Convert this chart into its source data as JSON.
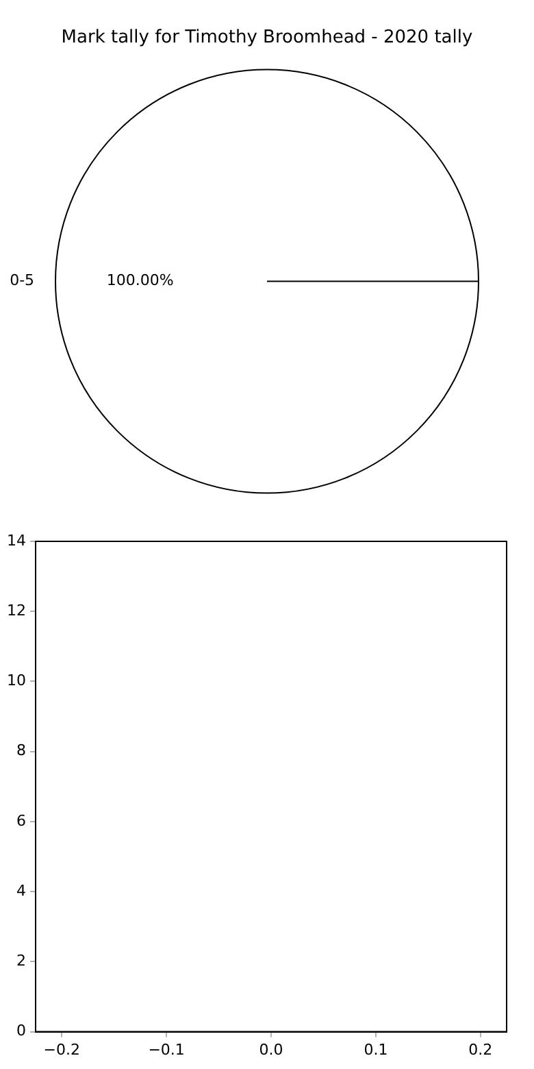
{
  "chart_data": [
    {
      "type": "pie",
      "title": "Mark tally for Timothy Broomhead - 2020 tally",
      "categories": [
        "0-5"
      ],
      "values": [
        100
      ],
      "colors": [
        "#ffffff"
      ],
      "value_labels": [
        "100.00%"
      ]
    },
    {
      "type": "scatter",
      "xlim": [
        -0.225,
        0.225
      ],
      "ylim": [
        0,
        14
      ],
      "xticks": [
        {
          "value": -0.2,
          "label": "−0.2"
        },
        {
          "value": -0.1,
          "label": "−0.1"
        },
        {
          "value": 0,
          "label": "0.0"
        },
        {
          "value": 0.1,
          "label": "0.1"
        },
        {
          "value": 0.2,
          "label": "0.2"
        }
      ],
      "yticks": [
        0,
        2,
        4,
        6,
        8,
        10,
        12,
        14
      ]
    }
  ]
}
